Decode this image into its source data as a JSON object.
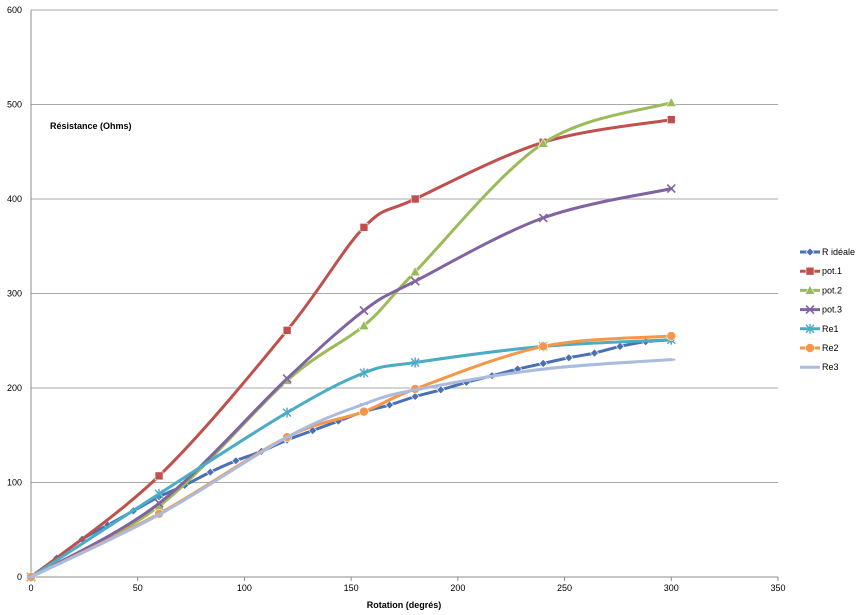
{
  "chart_data": {
    "type": "line",
    "title": "",
    "xlabel": "Rotation (degrés)",
    "ylabel": "Résistance (Ohms)",
    "xlim": [
      0,
      350
    ],
    "ylim": [
      0,
      600
    ],
    "x_ticks": [
      "0",
      "50",
      "100",
      "150",
      "200",
      "250",
      "300",
      "350"
    ],
    "y_ticks": [
      "0",
      "100",
      "200",
      "300",
      "400",
      "500",
      "600"
    ],
    "grid": "horizontal",
    "legend_position": "right",
    "series": [
      {
        "name": "R idéale",
        "color": "#4a6fb5",
        "marker": "diamond",
        "points": [
          [
            0,
            0
          ],
          [
            12,
            20
          ],
          [
            24,
            40
          ],
          [
            36,
            55
          ],
          [
            48,
            70
          ],
          [
            60,
            85
          ],
          [
            72,
            97
          ],
          [
            84,
            111
          ],
          [
            96,
            123
          ],
          [
            108,
            133
          ],
          [
            120,
            145
          ],
          [
            132,
            155
          ],
          [
            144,
            165
          ],
          [
            156,
            175
          ],
          [
            168,
            182
          ],
          [
            180,
            191
          ],
          [
            192,
            198
          ],
          [
            204,
            206
          ],
          [
            216,
            213
          ],
          [
            228,
            220
          ],
          [
            240,
            226
          ],
          [
            252,
            232
          ],
          [
            264,
            237
          ],
          [
            276,
            244
          ],
          [
            288,
            249
          ],
          [
            300,
            251
          ]
        ]
      },
      {
        "name": "pot.1",
        "color": "#c0504d",
        "marker": "square",
        "points": [
          [
            0,
            0
          ],
          [
            60,
            107
          ],
          [
            120,
            261
          ],
          [
            156,
            370
          ],
          [
            180,
            400
          ],
          [
            240,
            460
          ],
          [
            300,
            484
          ]
        ]
      },
      {
        "name": "pot.2",
        "color": "#9bbb59",
        "marker": "triangle",
        "points": [
          [
            0,
            0
          ],
          [
            60,
            75
          ],
          [
            120,
            208
          ],
          [
            156,
            266
          ],
          [
            180,
            323
          ],
          [
            240,
            459
          ],
          [
            300,
            502
          ]
        ]
      },
      {
        "name": "pot.3",
        "color": "#8064a2",
        "marker": "x",
        "points": [
          [
            0,
            0
          ],
          [
            60,
            78
          ],
          [
            120,
            210
          ],
          [
            156,
            282
          ],
          [
            180,
            313
          ],
          [
            240,
            380
          ],
          [
            300,
            411
          ]
        ]
      },
      {
        "name": "Re1",
        "color": "#4bacc6",
        "marker": "star",
        "points": [
          [
            0,
            0
          ],
          [
            60,
            88
          ],
          [
            120,
            174
          ],
          [
            156,
            216
          ],
          [
            180,
            227
          ],
          [
            240,
            244
          ],
          [
            300,
            251
          ]
        ]
      },
      {
        "name": "Re2",
        "color": "#f79646",
        "marker": "circle",
        "points": [
          [
            0,
            0
          ],
          [
            60,
            67
          ],
          [
            120,
            148
          ],
          [
            156,
            175
          ],
          [
            180,
            199
          ],
          [
            240,
            244
          ],
          [
            300,
            255
          ]
        ]
      },
      {
        "name": "Re3",
        "color": "#aabbdd",
        "marker": "dash",
        "points": [
          [
            0,
            0
          ],
          [
            60,
            66
          ],
          [
            120,
            148
          ],
          [
            156,
            183
          ],
          [
            180,
            198
          ],
          [
            240,
            220
          ],
          [
            300,
            230
          ]
        ]
      }
    ]
  }
}
